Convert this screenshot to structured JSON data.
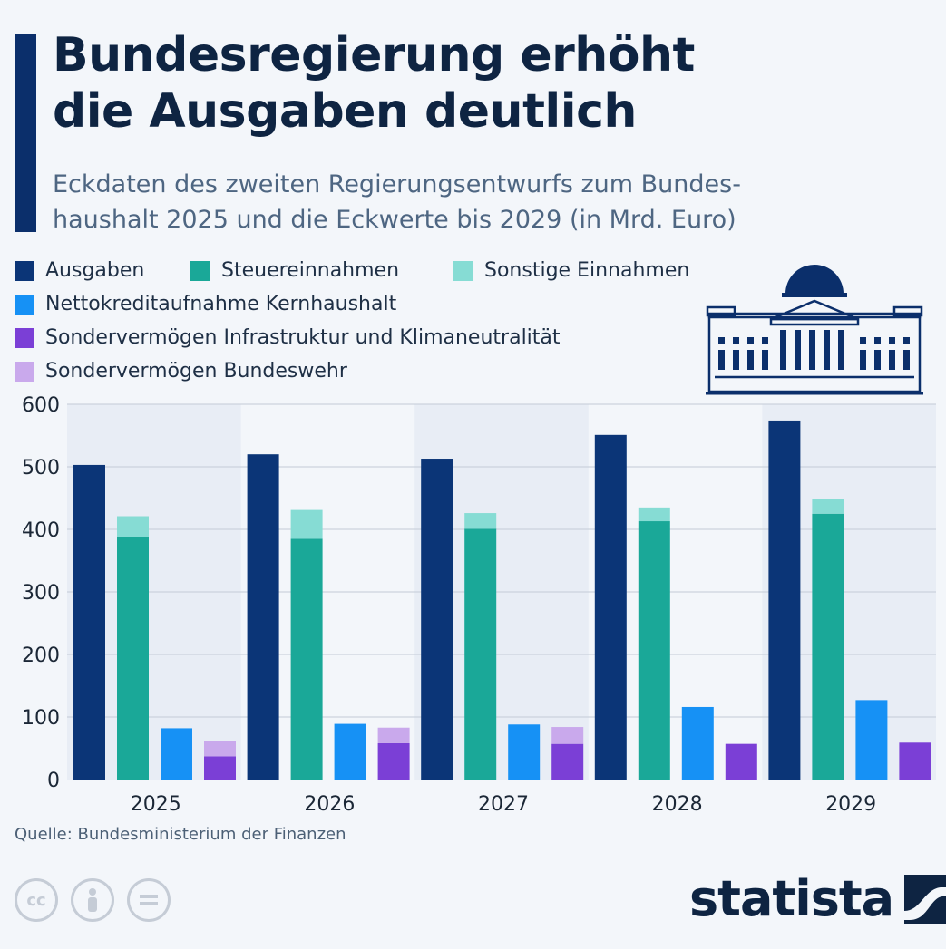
{
  "header": {
    "title_line1": "Bundesregierung erhöht",
    "title_line2": "die Ausgaben deutlich",
    "subtitle_line1": "Eckdaten des zweiten Regierungsentwurfs zum Bundes-",
    "subtitle_line2": "haushalt 2025 und die Eckwerte bis 2029 (in Mrd. Euro)"
  },
  "colors": {
    "accent": "#0b2f6b",
    "ausgaben": "#0b3577",
    "steuer": "#1aa898",
    "sonstige": "#86dcd4",
    "netto": "#1691f5",
    "sv_infra": "#7b3fd6",
    "sv_bw": "#c9a9ec",
    "band": "#e8edf5",
    "grid": "#c3cbd6"
  },
  "legend": [
    {
      "label": "Ausgaben",
      "color": "#0b3577"
    },
    {
      "label": "Steuereinnahmen",
      "color": "#1aa898"
    },
    {
      "label": "Sonstige Einnahmen",
      "color": "#86dcd4"
    },
    {
      "label": "Nettokreditaufnahme Kernhaushalt",
      "color": "#1691f5"
    },
    {
      "label": "Sondervermögen Infrastruktur und Klimaneutralität",
      "color": "#7b3fd6"
    },
    {
      "label": "Sondervermögen Bundeswehr",
      "color": "#c9a9ec"
    }
  ],
  "chart_data": {
    "type": "bar",
    "categories": [
      "2025",
      "2026",
      "2027",
      "2028",
      "2029"
    ],
    "series": [
      {
        "name": "Ausgaben",
        "values": [
          503,
          520,
          513,
          551,
          574
        ]
      },
      {
        "name": "Steuereinnahmen",
        "values": [
          387,
          385,
          401,
          413,
          425
        ]
      },
      {
        "name": "Sonstige Einnahmen",
        "values": [
          34,
          46,
          25,
          22,
          24
        ]
      },
      {
        "name": "Nettokreditaufnahme Kernhaushalt",
        "values": [
          82,
          89,
          88,
          116,
          127
        ]
      },
      {
        "name": "Sondervermögen Infrastruktur und Klimaneutralität",
        "values": [
          37,
          58,
          57,
          57,
          59
        ]
      },
      {
        "name": "Sondervermögen Bundeswehr",
        "values": [
          24,
          25,
          27,
          0,
          0
        ]
      }
    ],
    "stacks": {
      "Steuereinnahmen": "einnahmen",
      "Sonstige Einnahmen": "einnahmen",
      "Sondervermögen Infrastruktur und Klimaneutralität": "sonder",
      "Sondervermögen Bundeswehr": "sonder"
    },
    "yticks": [
      0,
      100,
      200,
      300,
      400,
      500,
      600
    ],
    "ylim": [
      0,
      600
    ],
    "grid": true,
    "legend_position": "top-left"
  },
  "footer": {
    "source": "Quelle: Bundesministerium der Finanzen",
    "brand": "statista",
    "cc_icons": [
      "cc-icon",
      "attribution-icon",
      "noderivs-icon"
    ]
  }
}
